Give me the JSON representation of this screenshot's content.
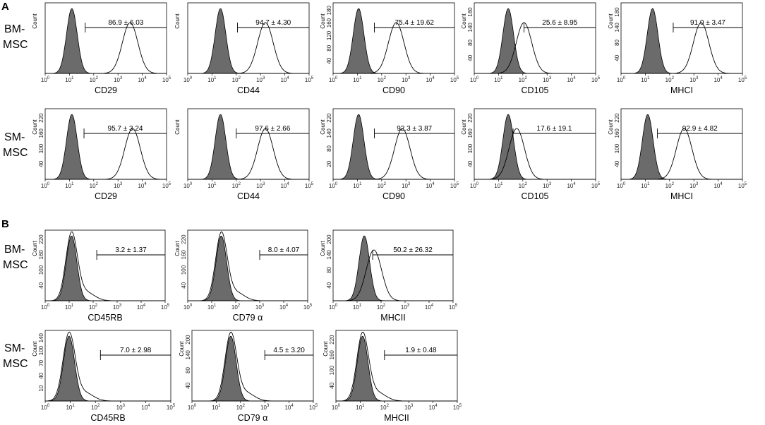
{
  "figure": {
    "panel_letters": [
      "A",
      "B"
    ],
    "row_labels": {
      "bm": [
        "BM-",
        "MSC"
      ],
      "sm": [
        "SM-",
        "MSC"
      ]
    },
    "count_label": "Count",
    "colors": {
      "fill": "#6b6b6b",
      "line": "#000000"
    }
  },
  "chart_data": [
    {
      "type": "histogram",
      "panel": "A",
      "group": "BM-MSC",
      "marker": "CD29",
      "xlabel": "CD29",
      "ylabel": "Count",
      "gate_label": "86.9 ± 6.03",
      "x_ticks": [
        "0",
        "1",
        "2",
        "3",
        "4",
        "5"
      ],
      "y_ticks": [],
      "x_scale": "log",
      "xlim": [
        1,
        100000
      ],
      "ctrl_peak_log": 1.1,
      "sample_peak_log": 3.5,
      "gate_start_log": 1.65
    },
    {
      "type": "histogram",
      "panel": "A",
      "group": "BM-MSC",
      "marker": "CD44",
      "xlabel": "CD44",
      "ylabel": "Count",
      "gate_label": "94.7 ± 4.30",
      "x_ticks": [
        "0",
        "1",
        "2",
        "3",
        "4",
        "5"
      ],
      "y_ticks": [],
      "x_scale": "log",
      "xlim": [
        1,
        100000
      ],
      "ctrl_peak_log": 1.35,
      "sample_peak_log": 3.2,
      "gate_start_log": 2.05
    },
    {
      "type": "histogram",
      "panel": "A",
      "group": "BM-MSC",
      "marker": "CD90",
      "xlabel": "CD90",
      "ylabel": "Count",
      "gate_label": "75.4 ± 19.62",
      "x_ticks": [
        "0",
        "1",
        "2",
        "3",
        "4",
        "5"
      ],
      "y_ticks": [
        "40",
        "80",
        "120",
        "160",
        "180"
      ],
      "x_scale": "log",
      "xlim": [
        1,
        100000
      ],
      "ctrl_peak_log": 1.05,
      "sample_peak_log": 2.6,
      "gate_start_log": 1.7
    },
    {
      "type": "histogram",
      "panel": "A",
      "group": "BM-MSC",
      "marker": "CD105",
      "xlabel": "CD105",
      "ylabel": "Count",
      "gate_label": "25.6 ± 8.95",
      "x_ticks": [
        "0",
        "1",
        "2",
        "3",
        "4",
        "5"
      ],
      "y_ticks": [
        "40",
        "80",
        "140",
        "180"
      ],
      "x_scale": "log",
      "xlim": [
        1,
        100000
      ],
      "ctrl_peak_log": 1.4,
      "sample_peak_log": 2.05,
      "gate_start_log": 2.05
    },
    {
      "type": "histogram",
      "panel": "A",
      "group": "BM-MSC",
      "marker": "MHCI",
      "xlabel": "MHCI",
      "ylabel": "Count",
      "gate_label": "91.0 ± 3.47",
      "x_ticks": [
        "0",
        "1",
        "2",
        "3",
        "4",
        "5"
      ],
      "y_ticks": [
        "40",
        "80",
        "140",
        "180"
      ],
      "x_scale": "log",
      "xlim": [
        1,
        100000
      ],
      "ctrl_peak_log": 1.3,
      "sample_peak_log": 3.3,
      "gate_start_log": 2.15
    },
    {
      "type": "histogram",
      "panel": "A",
      "group": "SM-MSC",
      "marker": "CD29",
      "xlabel": "CD29",
      "ylabel": "Count",
      "gate_label": "95.7 ± 3.24",
      "x_ticks": [
        "0",
        "1",
        "2",
        "3",
        "4",
        "5"
      ],
      "y_ticks": [
        "40",
        "100",
        "160",
        "220"
      ],
      "x_scale": "log",
      "xlim": [
        1,
        100000
      ],
      "ctrl_peak_log": 1.1,
      "sample_peak_log": 3.6,
      "gate_start_log": 1.6
    },
    {
      "type": "histogram",
      "panel": "A",
      "group": "SM-MSC",
      "marker": "CD44",
      "xlabel": "CD44",
      "ylabel": "Count",
      "gate_label": "97.6 ± 2.66",
      "x_ticks": [
        "0",
        "1",
        "2",
        "3",
        "4",
        "5"
      ],
      "y_ticks": [],
      "x_scale": "log",
      "xlim": [
        1,
        100000
      ],
      "ctrl_peak_log": 1.35,
      "sample_peak_log": 3.2,
      "gate_start_log": 2.0
    },
    {
      "type": "histogram",
      "panel": "A",
      "group": "SM-MSC",
      "marker": "CD90",
      "xlabel": "CD90",
      "ylabel": "Count",
      "gate_label": "92.3 ± 3.87",
      "x_ticks": [
        "0",
        "1",
        "2",
        "3",
        "4",
        "5"
      ],
      "y_ticks": [
        "20",
        "80",
        "140",
        "220"
      ],
      "x_scale": "log",
      "xlim": [
        1,
        100000
      ],
      "ctrl_peak_log": 1.05,
      "sample_peak_log": 2.85,
      "gate_start_log": 1.7
    },
    {
      "type": "histogram",
      "panel": "A",
      "group": "SM-MSC",
      "marker": "CD105",
      "xlabel": "CD105",
      "ylabel": "Count",
      "gate_label": "17.6 ± 19.1",
      "x_ticks": [
        "0",
        "1",
        "2",
        "3",
        "4",
        "5"
      ],
      "y_ticks": [
        "40",
        "100",
        "160",
        "220"
      ],
      "x_scale": "log",
      "xlim": [
        1,
        100000
      ],
      "ctrl_peak_log": 1.4,
      "sample_peak_log": 1.75,
      "gate_start_log": 1.6
    },
    {
      "type": "histogram",
      "panel": "A",
      "group": "SM-MSC",
      "marker": "MHCI",
      "xlabel": "MHCI",
      "ylabel": "Count",
      "gate_label": "92.9 ± 4.82",
      "x_ticks": [
        "0",
        "1",
        "2",
        "3",
        "4",
        "5"
      ],
      "y_ticks": [
        "40",
        "100",
        "160",
        "220"
      ],
      "x_scale": "log",
      "xlim": [
        1,
        100000
      ],
      "ctrl_peak_log": 1.1,
      "sample_peak_log": 2.6,
      "gate_start_log": 1.5
    },
    {
      "type": "histogram",
      "panel": "B",
      "group": "BM-MSC",
      "marker": "CD45RB",
      "xlabel": "CD45RB",
      "ylabel": "Count",
      "gate_label": "3.2 ± 1.37",
      "x_ticks": [
        "0",
        "1",
        "2",
        "3",
        "4",
        "5"
      ],
      "y_ticks": [
        "40",
        "100",
        "160",
        "220"
      ],
      "x_scale": "log",
      "xlim": [
        1,
        100000
      ],
      "ctrl_peak_log": 1.1,
      "sample_peak_log": 1.1,
      "gate_start_log": 2.15
    },
    {
      "type": "histogram",
      "panel": "B",
      "group": "BM-MSC",
      "marker": "CD79α",
      "xlabel": "CD79 α",
      "ylabel": "Count",
      "gate_label": "8.0 ± 4.07",
      "x_ticks": [
        "0",
        "1",
        "2",
        "3",
        "4",
        "5"
      ],
      "y_ticks": [
        "40",
        "100",
        "160",
        "220"
      ],
      "x_scale": "log",
      "xlim": [
        1,
        100000
      ],
      "ctrl_peak_log": 1.4,
      "sample_peak_log": 1.4,
      "gate_start_log": 3.0
    },
    {
      "type": "histogram",
      "panel": "B",
      "group": "BM-MSC",
      "marker": "MHCII",
      "xlabel": "MHCII",
      "ylabel": "Count",
      "gate_label": "50.2 ± 26.32",
      "x_ticks": [
        "0",
        "1",
        "2",
        "3",
        "4",
        "5"
      ],
      "y_ticks": [
        "40",
        "80",
        "140",
        "200"
      ],
      "x_scale": "log",
      "xlim": [
        1,
        100000
      ],
      "ctrl_peak_log": 1.3,
      "sample_peak_log": 1.7,
      "gate_start_log": 1.65
    },
    {
      "type": "histogram",
      "panel": "B",
      "group": "SM-MSC",
      "marker": "CD45RB",
      "xlabel": "CD45RB",
      "ylabel": "Count",
      "gate_label": "7.0 ± 2.98",
      "x_ticks": [
        "0",
        "1",
        "2",
        "3",
        "4",
        "5"
      ],
      "y_ticks": [
        "10",
        "40",
        "70",
        "100",
        "140"
      ],
      "x_scale": "log",
      "xlim": [
        1,
        100000
      ],
      "ctrl_peak_log": 0.95,
      "sample_peak_log": 0.95,
      "gate_start_log": 2.2
    },
    {
      "type": "histogram",
      "panel": "B",
      "group": "SM-MSC",
      "marker": "CD79α",
      "xlabel": "CD79 α",
      "ylabel": "Count",
      "gate_label": "4.5 ± 3.20",
      "x_ticks": [
        "0",
        "1",
        "2",
        "3",
        "4",
        "5"
      ],
      "y_ticks": [
        "40",
        "80",
        "140",
        "200"
      ],
      "x_scale": "log",
      "xlim": [
        1,
        100000
      ],
      "ctrl_peak_log": 1.6,
      "sample_peak_log": 1.6,
      "gate_start_log": 3.0
    },
    {
      "type": "histogram",
      "panel": "B",
      "group": "SM-MSC",
      "marker": "MHCII",
      "xlabel": "MHCII",
      "ylabel": "Count",
      "gate_label": "1.9 ± 0.48",
      "x_ticks": [
        "0",
        "1",
        "2",
        "3",
        "4",
        "5"
      ],
      "y_ticks": [
        "40",
        "100",
        "160",
        "220"
      ],
      "x_scale": "log",
      "xlim": [
        1,
        100000
      ],
      "ctrl_peak_log": 1.1,
      "sample_peak_log": 1.1,
      "gate_start_log": 2.0
    }
  ]
}
